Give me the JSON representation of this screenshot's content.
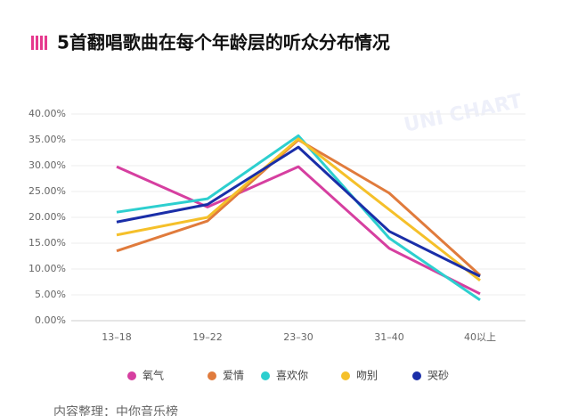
{
  "chart_data": {
    "type": "line",
    "title": "5首翻唱歌曲在每个年龄层的听众分布情况",
    "watermark": "UNI CHART",
    "source": "内容整理：中你音乐榜",
    "categories": [
      "13–18",
      "19–22",
      "23–30",
      "31–40",
      "40以上"
    ],
    "series": [
      {
        "name": "氧气",
        "color": "#d63fa0",
        "values": [
          29.8,
          22,
          29.8,
          14,
          5.2
        ]
      },
      {
        "name": "爱情",
        "color": "#e07b3c",
        "values": [
          13.5,
          19.3,
          35,
          24.7,
          8.8
        ]
      },
      {
        "name": "喜欢你",
        "color": "#2dcfcf",
        "values": [
          21,
          23.6,
          35.8,
          16,
          4
        ]
      },
      {
        "name": "吻别",
        "color": "#f5c02a",
        "values": [
          16.6,
          20,
          35.2,
          21.5,
          7.8
        ]
      },
      {
        "name": "哭砂",
        "color": "#1a2ea8",
        "values": [
          19.1,
          22.5,
          33.6,
          17.3,
          8.6
        ]
      }
    ],
    "ylim": [
      0,
      40
    ],
    "yticks": [
      {
        "value": 0,
        "label": "0.00%"
      },
      {
        "value": 5,
        "label": "5.00%"
      },
      {
        "value": 10,
        "label": "10.00%"
      },
      {
        "value": 15,
        "label": "15.00%"
      },
      {
        "value": 20,
        "label": "20.00%"
      },
      {
        "value": 25,
        "label": "25.00%"
      },
      {
        "value": 30,
        "label": "30.00%"
      },
      {
        "value": 35,
        "label": "35.00%"
      },
      {
        "value": 40,
        "label": "40.00%"
      }
    ],
    "grid": true
  }
}
